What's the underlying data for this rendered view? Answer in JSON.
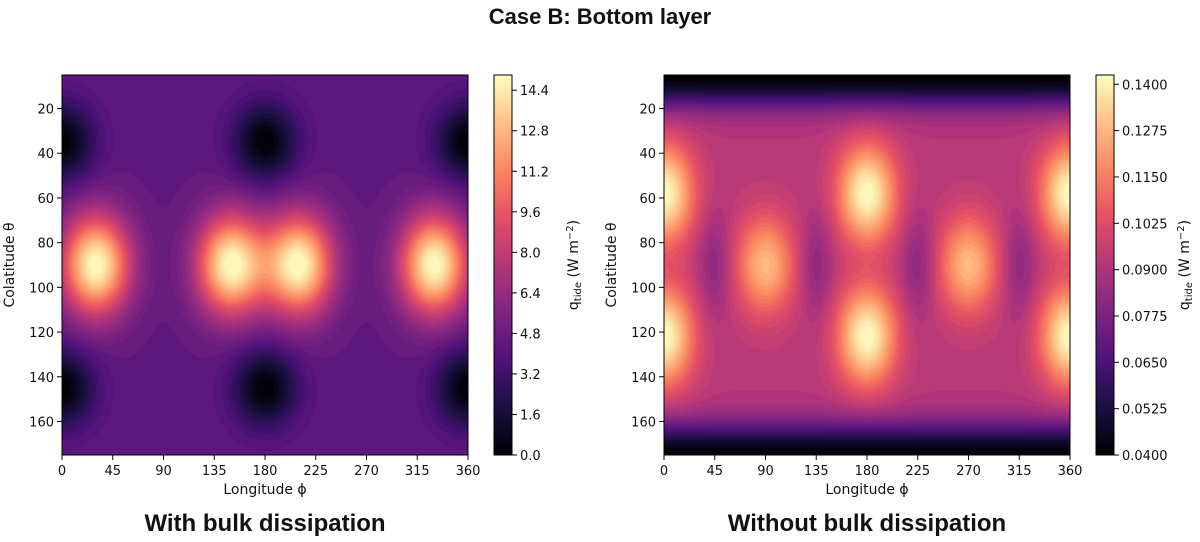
{
  "figure_title": "Case B: Bottom layer",
  "chart_data": [
    {
      "type": "heatmap",
      "id": "left",
      "caption": "With bulk dissipation",
      "xlabel": "Longitude ϕ",
      "ylabel": "Colatitude θ",
      "xlim": [
        0,
        360
      ],
      "ylim": [
        175,
        5
      ],
      "xticks": [
        0,
        45,
        90,
        135,
        180,
        225,
        270,
        315,
        360
      ],
      "yticks": [
        20,
        40,
        60,
        80,
        100,
        120,
        140,
        160
      ],
      "colorbar": {
        "label": "q",
        "label_sub": "tide",
        "label_unit": " (W m",
        "label_sup": "−2",
        "label_close": ")",
        "min": 0.0,
        "max": 15.0,
        "ticks": [
          "0.0",
          "1.6",
          "3.2",
          "4.8",
          "6.4",
          "8.0",
          "9.6",
          "11.2",
          "12.8",
          "14.4"
        ]
      },
      "field": {
        "description": "tidal heat flux, bright maxima at equator, dark minima near poles",
        "baseline": 4.4,
        "maxima": [
          {
            "lon": 30,
            "colat": 90,
            "value": 15.0
          },
          {
            "lon": 150,
            "colat": 90,
            "value": 15.0
          },
          {
            "lon": 210,
            "colat": 90,
            "value": 15.0
          },
          {
            "lon": 330,
            "colat": 90,
            "value": 15.0
          }
        ],
        "minima": [
          {
            "lon": 0,
            "colat": 35,
            "value": 0.0
          },
          {
            "lon": 180,
            "colat": 35,
            "value": 0.0
          },
          {
            "lon": 360,
            "colat": 35,
            "value": 0.0
          },
          {
            "lon": 0,
            "colat": 145,
            "value": 0.0
          },
          {
            "lon": 180,
            "colat": 145,
            "value": 0.0
          },
          {
            "lon": 360,
            "colat": 145,
            "value": 0.0
          }
        ]
      }
    },
    {
      "type": "heatmap",
      "id": "right",
      "caption": "Without bulk dissipation",
      "xlabel": "Longitude ϕ",
      "ylabel": "Colatitude θ",
      "xlim": [
        0,
        360
      ],
      "ylim": [
        175,
        5
      ],
      "xticks": [
        0,
        45,
        90,
        135,
        180,
        225,
        270,
        315,
        360
      ],
      "yticks": [
        20,
        40,
        60,
        80,
        100,
        120,
        140,
        160
      ],
      "colorbar": {
        "label": "q",
        "label_sub": "tide",
        "label_unit": " (W m",
        "label_sup": "−2",
        "label_close": ")",
        "min": 0.04,
        "max": 0.1425,
        "ticks": [
          "0.0400",
          "0.0525",
          "0.0650",
          "0.0775",
          "0.0900",
          "0.1025",
          "0.1150",
          "0.1275",
          "0.1400"
        ]
      },
      "field": {
        "description": "tidal heat flux, maxima at mid-colatitudes and lon 90/270 equator band",
        "baseline": 0.092,
        "maxima": [
          {
            "lon": 0,
            "colat": 58,
            "value": 0.1425
          },
          {
            "lon": 180,
            "colat": 58,
            "value": 0.1425
          },
          {
            "lon": 360,
            "colat": 58,
            "value": 0.1425
          },
          {
            "lon": 0,
            "colat": 122,
            "value": 0.1425
          },
          {
            "lon": 180,
            "colat": 122,
            "value": 0.1425
          },
          {
            "lon": 360,
            "colat": 122,
            "value": 0.1425
          },
          {
            "lon": 90,
            "colat": 90,
            "value": 0.128
          },
          {
            "lon": 270,
            "colat": 90,
            "value": 0.128
          }
        ],
        "minima": [
          {
            "lon": 45,
            "colat": 90,
            "value": 0.08
          },
          {
            "lon": 135,
            "colat": 90,
            "value": 0.08
          },
          {
            "lon": 225,
            "colat": 90,
            "value": 0.08
          },
          {
            "lon": 315,
            "colat": 90,
            "value": 0.08
          }
        ],
        "polar_min": 0.04
      }
    }
  ]
}
